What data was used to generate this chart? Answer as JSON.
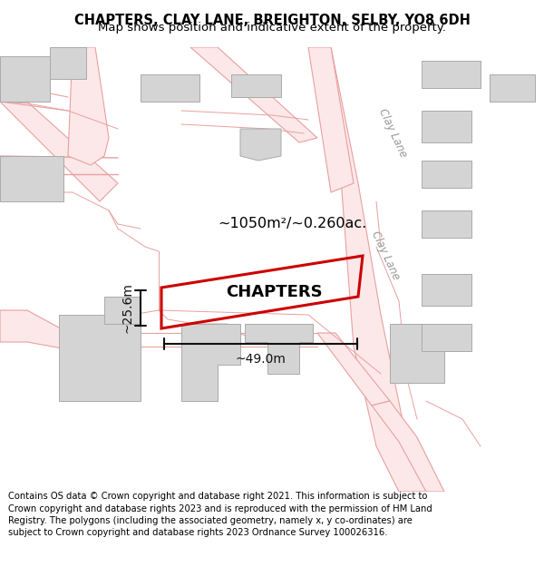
{
  "title": "CHAPTERS, CLAY LANE, BREIGHTON, SELBY, YO8 6DH",
  "subtitle": "Map shows position and indicative extent of the property.",
  "footer": "Contains OS data © Crown copyright and database right 2021. This information is subject to Crown copyright and database rights 2023 and is reproduced with the permission of HM Land Registry. The polygons (including the associated geometry, namely x, y co-ordinates) are subject to Crown copyright and database rights 2023 Ordnance Survey 100026316.",
  "bg_color": "#ffffff",
  "map_bg": "#ffffff",
  "road_line_color": "#e8a0a0",
  "road_fill_color": "#fce8e8",
  "building_color": "#d4d4d4",
  "building_edge_color": "#aaaaaa",
  "property_edge_color": "#cc0000",
  "property_lw": 2.2,
  "dim_color": "#111111",
  "label_color": "#000000",
  "clay_lane_label": "Clay Lane",
  "property_label": "CHAPTERS",
  "area_label": "~1050m²/~0.260ac.",
  "dim_width_label": "~49.0m",
  "dim_height_label": "~25.6m",
  "title_fontsize": 10.5,
  "subtitle_fontsize": 9.5,
  "footer_fontsize": 7.2
}
